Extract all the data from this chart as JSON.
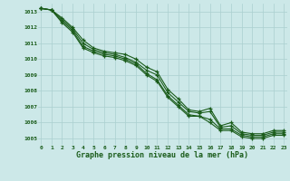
{
  "title": "Graphe pression niveau de la mer (hPa)",
  "bg_color": "#cce8e8",
  "grid_color": "#aacfcf",
  "line_color": "#1a5c1a",
  "x_min": -0.3,
  "x_max": 23.3,
  "y_min": 1004.6,
  "y_max": 1013.5,
  "yticks": [
    1005,
    1006,
    1007,
    1008,
    1009,
    1010,
    1011,
    1012,
    1013
  ],
  "xticks": [
    0,
    1,
    2,
    3,
    4,
    5,
    6,
    7,
    8,
    9,
    10,
    11,
    12,
    13,
    14,
    15,
    16,
    17,
    18,
    19,
    20,
    21,
    22,
    23
  ],
  "series": [
    [
      1013.2,
      1013.1,
      1012.6,
      1012.0,
      1011.2,
      1010.7,
      1010.5,
      1010.4,
      1010.3,
      1010.0,
      1009.5,
      1009.2,
      1008.1,
      1007.5,
      1006.8,
      1006.7,
      1006.9,
      1005.8,
      1006.0,
      1005.4,
      1005.3,
      1005.3,
      1005.5,
      1005.5
    ],
    [
      1013.2,
      1013.1,
      1012.5,
      1011.9,
      1011.0,
      1010.6,
      1010.4,
      1010.3,
      1010.1,
      1009.8,
      1009.3,
      1009.0,
      1007.9,
      1007.3,
      1006.7,
      1006.6,
      1006.7,
      1005.7,
      1005.8,
      1005.3,
      1005.2,
      1005.2,
      1005.4,
      1005.4
    ],
    [
      1013.2,
      1013.1,
      1012.4,
      1011.8,
      1010.8,
      1010.5,
      1010.3,
      1010.2,
      1010.0,
      1009.7,
      1009.1,
      1008.7,
      1007.7,
      1007.1,
      1006.5,
      1006.4,
      1006.2,
      1005.6,
      1005.6,
      1005.2,
      1005.1,
      1005.1,
      1005.3,
      1005.3
    ],
    [
      1013.2,
      1013.1,
      1012.3,
      1011.7,
      1010.7,
      1010.4,
      1010.2,
      1010.1,
      1009.9,
      1009.6,
      1009.0,
      1008.6,
      1007.6,
      1007.0,
      1006.4,
      1006.4,
      1006.0,
      1005.5,
      1005.5,
      1005.1,
      1005.0,
      1005.0,
      1005.2,
      1005.2
    ]
  ],
  "font_family": "monospace"
}
